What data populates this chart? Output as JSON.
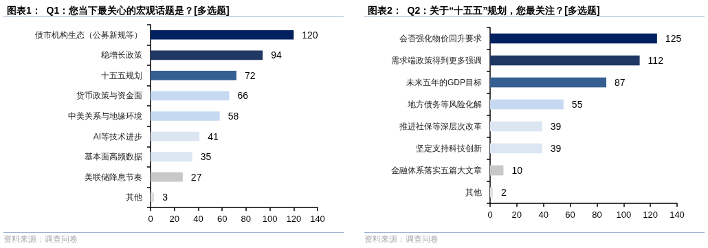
{
  "chart_data": [
    {
      "type": "bar",
      "orientation": "horizontal",
      "title": "图表1：  Q1：您当下最关心的宏观话题是？[多选题]",
      "categories": [
        "债市机构生态（公募新规等）",
        "稳增长政策",
        "十五五规划",
        "货币政策与资金面",
        "中美关系与地缘环境",
        "AI等技术进步",
        "基本面高频数据",
        "美联储降息节奏",
        "其他"
      ],
      "values": [
        120,
        94,
        72,
        66,
        58,
        41,
        35,
        27,
        3
      ],
      "colors": [
        "#002060",
        "#1f3864",
        "#365f91",
        "#c6d9f1",
        "#c6d9f1",
        "#dce6f2",
        "#dce6f2",
        "#c8c8c8",
        "#e0e0e0"
      ],
      "xlim": [
        0,
        140
      ],
      "xticks": [
        0,
        20,
        40,
        60,
        80,
        100,
        120,
        140
      ],
      "grid": false,
      "data_labels": true,
      "annotations": [
        "资料来源：调查问卷"
      ]
    },
    {
      "type": "bar",
      "orientation": "horizontal",
      "title": "图表2：  Q2：关于“十五五”规划，您最关注？[多选题]",
      "categories": [
        "会否强化物价回升要求",
        "需求端政策得到更多强调",
        "未来五年的GDP目标",
        "地方债务等风险化解",
        "推进社保等深层次改革",
        "坚定支持科技创新",
        "金融体系落实五篇大文章",
        "其他"
      ],
      "values": [
        125,
        112,
        87,
        55,
        39,
        39,
        10,
        2
      ],
      "colors": [
        "#002060",
        "#1f3864",
        "#365f91",
        "#c6d9f1",
        "#dce6f2",
        "#dce6f2",
        "#c8c8c8",
        "#e0e0e0"
      ],
      "xlim": [
        0,
        140
      ],
      "xticks": [
        0,
        20,
        40,
        60,
        80,
        100,
        120,
        140
      ],
      "grid": false,
      "data_labels": true,
      "annotations": [
        "资料来源：调查问卷"
      ]
    }
  ]
}
